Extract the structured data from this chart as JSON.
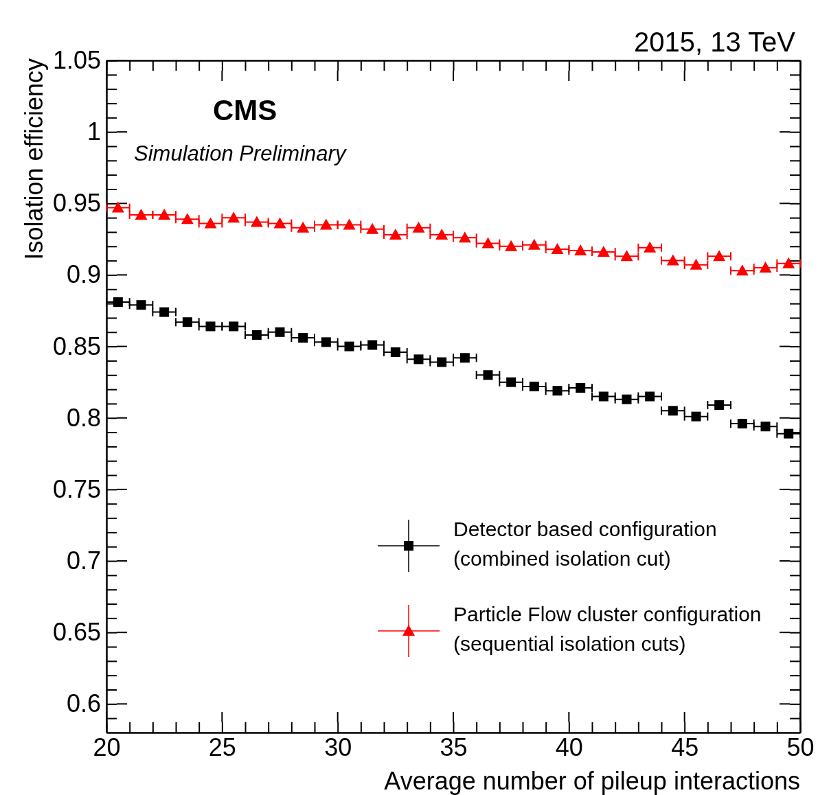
{
  "chart_data": {
    "type": "scatter",
    "xlabel": "Average number of pileup interactions",
    "ylabel": "Isolation efficiency",
    "annotations": [
      "2015, 13 TeV",
      "CMS",
      "Simulation Preliminary"
    ],
    "x": [
      20.5,
      21.5,
      22.5,
      23.5,
      24.5,
      25.5,
      26.5,
      27.5,
      28.5,
      29.5,
      30.5,
      31.5,
      32.5,
      33.5,
      34.5,
      35.5,
      36.5,
      37.5,
      38.5,
      39.5,
      40.5,
      41.5,
      42.5,
      43.5,
      44.5,
      45.5,
      46.5,
      47.5,
      48.5,
      49.5
    ],
    "series": [
      {
        "name": "Detector based configuration\n(combined isolation cut)",
        "color": "#000000",
        "marker": "square",
        "values": [
          0.881,
          0.879,
          0.874,
          0.867,
          0.864,
          0.864,
          0.858,
          0.86,
          0.856,
          0.853,
          0.85,
          0.851,
          0.846,
          0.841,
          0.839,
          0.842,
          0.83,
          0.825,
          0.822,
          0.819,
          0.821,
          0.815,
          0.813,
          0.815,
          0.805,
          0.801,
          0.809,
          0.796,
          0.794,
          0.789
        ],
        "xerrors": [
          0.5,
          0.5,
          0.5,
          0.5,
          0.5,
          0.5,
          0.5,
          0.5,
          0.5,
          0.5,
          0.5,
          0.5,
          0.5,
          0.5,
          0.5,
          0.5,
          0.5,
          0.5,
          0.5,
          0.5,
          0.5,
          0.5,
          0.5,
          0.5,
          0.5,
          0.5,
          0.5,
          0.5,
          0.5,
          0.5
        ]
      },
      {
        "name": "Particle Flow cluster configuration\n(sequential isolation cuts)",
        "color": "#ff0000",
        "marker": "triangle",
        "values": [
          0.947,
          0.942,
          0.942,
          0.939,
          0.936,
          0.94,
          0.937,
          0.936,
          0.933,
          0.935,
          0.935,
          0.932,
          0.928,
          0.933,
          0.928,
          0.926,
          0.922,
          0.92,
          0.921,
          0.918,
          0.917,
          0.916,
          0.913,
          0.919,
          0.91,
          0.907,
          0.913,
          0.903,
          0.905,
          0.908
        ],
        "xerrors": [
          0.5,
          0.5,
          0.5,
          0.5,
          0.5,
          0.5,
          0.5,
          0.5,
          0.5,
          0.5,
          0.5,
          0.5,
          0.5,
          0.5,
          0.5,
          0.5,
          0.5,
          0.5,
          0.5,
          0.5,
          0.5,
          0.5,
          0.5,
          0.5,
          0.5,
          0.5,
          0.5,
          0.5,
          0.5,
          0.5
        ]
      }
    ],
    "xlim": [
      20,
      50
    ],
    "xticks": [
      20,
      {
        "value": 21,
        "label": null
      },
      {
        "value": 22,
        "label": null
      },
      {
        "value": 23,
        "label": null
      },
      {
        "value": 24,
        "label": null
      },
      25,
      {
        "value": 26,
        "label": null
      },
      {
        "value": 27,
        "label": null
      },
      {
        "value": 28,
        "label": null
      },
      {
        "value": 29,
        "label": null
      },
      30,
      {
        "value": 31,
        "label": null
      },
      {
        "value": 32,
        "label": null
      },
      {
        "value": 33,
        "label": null
      },
      {
        "value": 34,
        "label": null
      },
      35,
      {
        "value": 36,
        "label": null
      },
      {
        "value": 37,
        "label": null
      },
      {
        "value": 38,
        "label": null
      },
      {
        "value": 39,
        "label": null
      },
      40,
      {
        "value": 41,
        "label": null
      },
      {
        "value": 42,
        "label": null
      },
      {
        "value": 43,
        "label": null
      },
      {
        "value": 44,
        "label": null
      },
      45,
      {
        "value": 46,
        "label": null
      },
      {
        "value": 47,
        "label": null
      },
      {
        "value": 48,
        "label": null
      },
      {
        "value": 49,
        "label": null
      },
      50
    ],
    "ylim": [
      0.58,
      1.05
    ],
    "yticks": [
      {
        "value": 0.59,
        "label": null
      },
      0.6,
      {
        "value": 0.61,
        "label": null
      },
      {
        "value": 0.62,
        "label": null
      },
      {
        "value": 0.63,
        "label": null
      },
      {
        "value": 0.64,
        "label": null
      },
      0.65,
      {
        "value": 0.66,
        "label": null
      },
      {
        "value": 0.67,
        "label": null
      },
      {
        "value": 0.68,
        "label": null
      },
      {
        "value": 0.69,
        "label": null
      },
      0.7,
      {
        "value": 0.71,
        "label": null
      },
      {
        "value": 0.72,
        "label": null
      },
      {
        "value": 0.73,
        "label": null
      },
      {
        "value": 0.74,
        "label": null
      },
      0.75,
      {
        "value": 0.76,
        "label": null
      },
      {
        "value": 0.77,
        "label": null
      },
      {
        "value": 0.78,
        "label": null
      },
      {
        "value": 0.79,
        "label": null
      },
      0.8,
      {
        "value": 0.81,
        "label": null
      },
      {
        "value": 0.82,
        "label": null
      },
      {
        "value": 0.83,
        "label": null
      },
      {
        "value": 0.84,
        "label": null
      },
      0.85,
      {
        "value": 0.86,
        "label": null
      },
      {
        "value": 0.87,
        "label": null
      },
      {
        "value": 0.88,
        "label": null
      },
      {
        "value": 0.89,
        "label": null
      },
      0.9,
      {
        "value": 0.91,
        "label": null
      },
      {
        "value": 0.92,
        "label": null
      },
      {
        "value": 0.93,
        "label": null
      },
      {
        "value": 0.94,
        "label": null
      },
      0.95,
      {
        "value": 0.96,
        "label": null
      },
      {
        "value": 0.97,
        "label": null
      },
      {
        "value": 0.98,
        "label": null
      },
      {
        "value": 0.99,
        "label": null
      },
      1,
      {
        "value": 1.01,
        "label": null
      },
      {
        "value": 1.02,
        "label": null
      },
      {
        "value": 1.03,
        "label": null
      },
      {
        "value": 1.04,
        "label": null
      },
      1.05
    ],
    "legend": "bottom right",
    "grid": false
  }
}
